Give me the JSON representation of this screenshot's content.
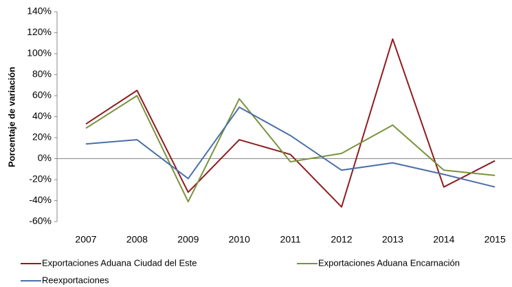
{
  "chart_data": {
    "type": "line",
    "y_label": "Porcentaje de variación",
    "categories": [
      "2007",
      "2008",
      "2009",
      "2010",
      "2011",
      "2012",
      "2013",
      "2014",
      "2015"
    ],
    "series": [
      {
        "name": "Exportaciones Aduana Ciudad del Este",
        "color": "#8e1b1f",
        "values": [
          33,
          65,
          -32,
          18,
          4,
          -46,
          114,
          -27,
          -2
        ]
      },
      {
        "name": "Exportaciones Aduana Encarnación",
        "color": "#77933c",
        "values": [
          29,
          60,
          -41,
          57,
          -3,
          5,
          32,
          -11,
          -16
        ]
      },
      {
        "name": "Reexportaciones",
        "color": "#4a6fa5",
        "values": [
          14,
          18,
          -19,
          49,
          22,
          -11,
          -4,
          -15,
          -27
        ]
      }
    ],
    "ylim": [
      -60,
      140
    ],
    "yticks": [
      {
        "value": -60,
        "label": "-60%"
      },
      {
        "value": -40,
        "label": "-40%"
      },
      {
        "value": -20,
        "label": "-20%"
      },
      {
        "value": 0,
        "label": "0%"
      },
      {
        "value": 20,
        "label": "20%"
      },
      {
        "value": 40,
        "label": "40%"
      },
      {
        "value": 60,
        "label": "60%"
      },
      {
        "value": 80,
        "label": "80%"
      },
      {
        "value": 100,
        "label": "100%"
      },
      {
        "value": 120,
        "label": "120%"
      },
      {
        "value": 140,
        "label": "140%"
      }
    ],
    "grid": false,
    "legend": "bottom"
  }
}
